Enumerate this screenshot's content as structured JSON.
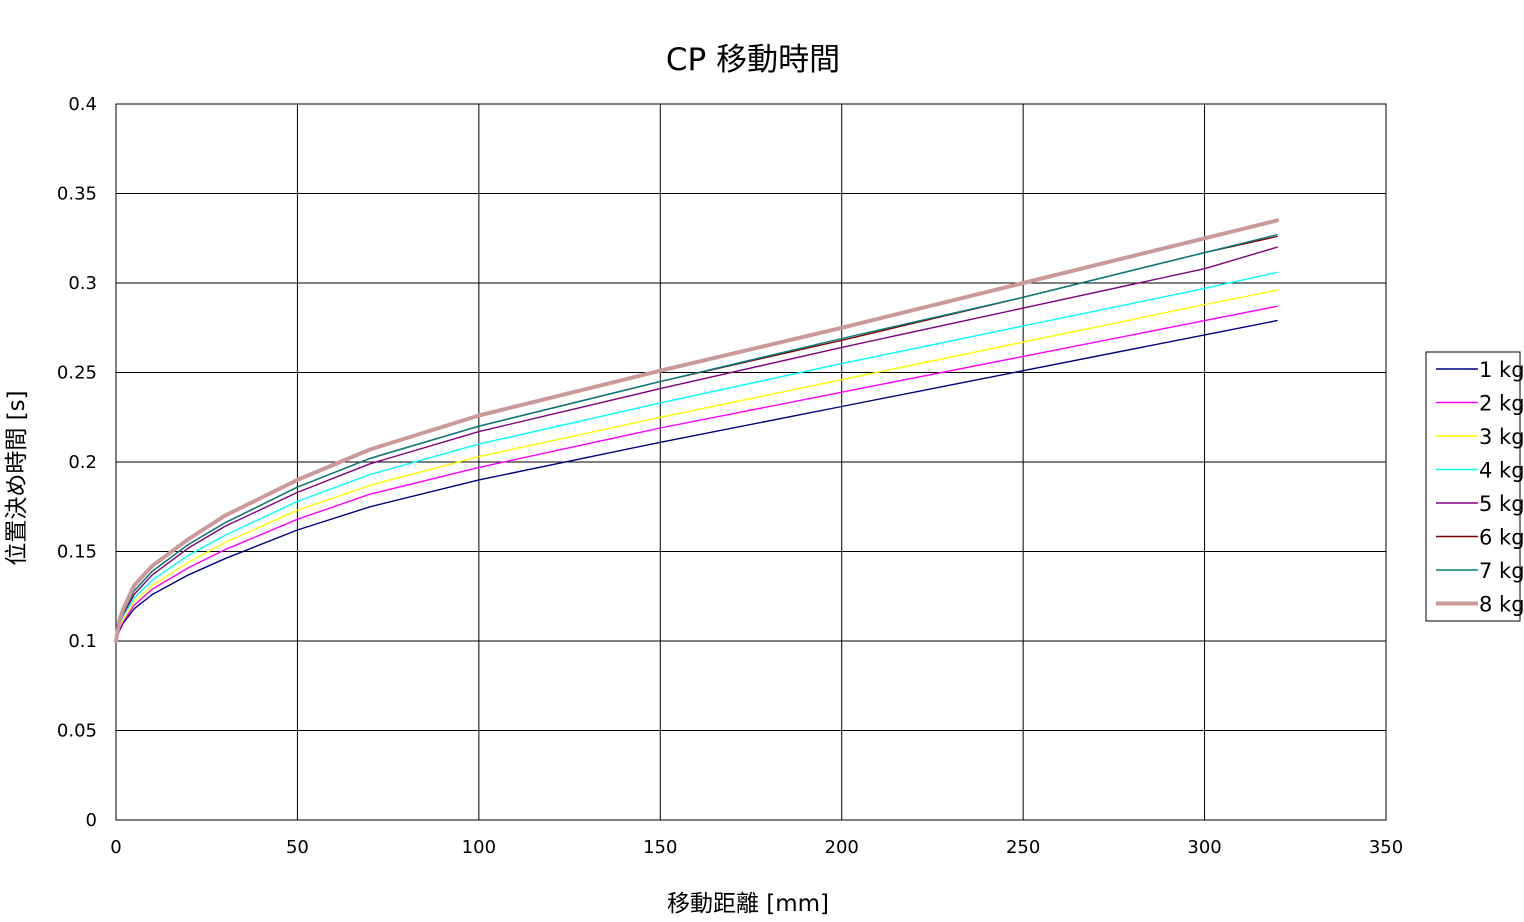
{
  "chart_data": {
    "type": "line",
    "title": "CP 移動時間",
    "xlabel": "移動距離 [mm]",
    "ylabel": "位置決め時間 [s]",
    "xlim": [
      0,
      350
    ],
    "ylim": [
      0,
      0.4
    ],
    "x_ticks": [
      "0",
      "50",
      "100",
      "150",
      "200",
      "250",
      "300",
      "350"
    ],
    "y_ticks": [
      "0",
      "0.05",
      "0.1",
      "0.15",
      "0.2",
      "0.25",
      "0.3",
      "0.35",
      "0.4"
    ],
    "grid": true,
    "legend_position": "right",
    "x": [
      0,
      1,
      2,
      5,
      10,
      20,
      30,
      50,
      70,
      100,
      150,
      200,
      250,
      300,
      320
    ],
    "series": [
      {
        "name": "1 kg",
        "color": "#000080",
        "values": [
          0.1,
          0.106,
          0.11,
          0.118,
          0.126,
          0.137,
          0.146,
          0.162,
          0.175,
          0.19,
          0.211,
          0.231,
          0.251,
          0.271,
          0.279
        ]
      },
      {
        "name": "2 kg",
        "color": "#ff00ff",
        "values": [
          0.1,
          0.107,
          0.111,
          0.12,
          0.129,
          0.141,
          0.151,
          0.168,
          0.182,
          0.197,
          0.219,
          0.239,
          0.259,
          0.279,
          0.287
        ]
      },
      {
        "name": "3 kg",
        "color": "#ffff00",
        "values": [
          0.1,
          0.108,
          0.112,
          0.122,
          0.131,
          0.144,
          0.155,
          0.173,
          0.187,
          0.203,
          0.225,
          0.246,
          0.267,
          0.288,
          0.296
        ]
      },
      {
        "name": "4 kg",
        "color": "#00ffff",
        "values": [
          0.1,
          0.109,
          0.114,
          0.124,
          0.134,
          0.148,
          0.159,
          0.178,
          0.193,
          0.21,
          0.233,
          0.255,
          0.276,
          0.297,
          0.306
        ]
      },
      {
        "name": "5 kg",
        "color": "#800080",
        "values": [
          0.1,
          0.11,
          0.115,
          0.126,
          0.137,
          0.152,
          0.164,
          0.183,
          0.199,
          0.217,
          0.241,
          0.264,
          0.286,
          0.308,
          0.32
        ]
      },
      {
        "name": "6 kg",
        "color": "#800000",
        "values": [
          0.1,
          0.111,
          0.116,
          0.128,
          0.139,
          0.154,
          0.166,
          0.186,
          0.202,
          0.22,
          0.245,
          0.268,
          0.292,
          0.317,
          0.326
        ]
      },
      {
        "name": "7 kg",
        "color": "#008080",
        "values": [
          0.1,
          0.111,
          0.116,
          0.128,
          0.139,
          0.154,
          0.166,
          0.186,
          0.202,
          0.22,
          0.245,
          0.269,
          0.292,
          0.317,
          0.327
        ]
      },
      {
        "name": "8 kg",
        "color": "#cc9999",
        "values": [
          0.1,
          0.112,
          0.118,
          0.131,
          0.142,
          0.157,
          0.17,
          0.19,
          0.207,
          0.226,
          0.251,
          0.275,
          0.3,
          0.325,
          0.335
        ]
      }
    ]
  }
}
